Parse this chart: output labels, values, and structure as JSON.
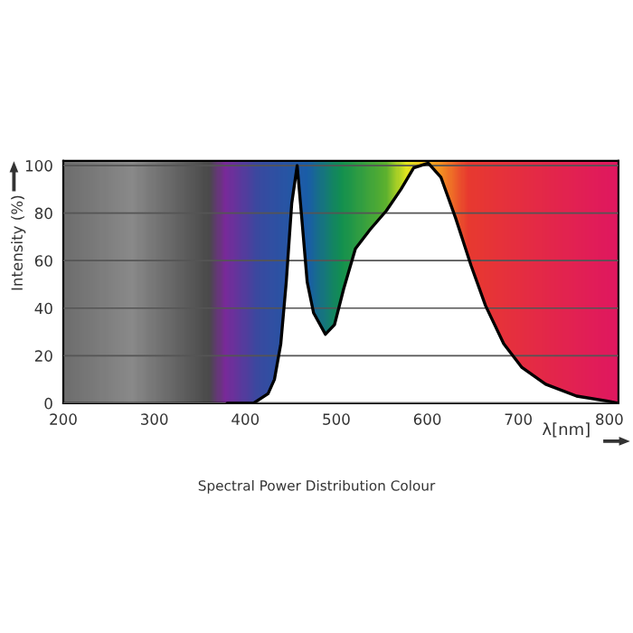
{
  "chart_data": {
    "type": "area",
    "xlabel": "λ[nm]",
    "ylabel": "Intensity (%)",
    "annotations": [
      "Spectral Power Distribution Colour"
    ],
    "xlim": [
      200,
      810
    ],
    "xticks": [
      200,
      300,
      400,
      500,
      600,
      700,
      800
    ],
    "ylim": [
      0,
      102
    ],
    "yticks": [
      0,
      20,
      40,
      60,
      80,
      100
    ],
    "grid": "y",
    "legend": false,
    "series": [
      {
        "color": "#ffffff",
        "x": [
          380,
          409,
          425,
          432,
          439,
          445,
          451,
          457,
          462,
          468,
          475,
          488,
          498,
          508,
          521,
          537,
          555,
          571,
          585,
          601,
          615,
          631,
          648,
          664,
          684,
          704,
          730,
          764,
          797,
          810
        ],
        "values": [
          0,
          0,
          4,
          10,
          25,
          51,
          84,
          100,
          78,
          51,
          38,
          29,
          33,
          48,
          65,
          73,
          81,
          90,
          99,
          101,
          95,
          78,
          58,
          41,
          25,
          15,
          8,
          3,
          1,
          0
        ]
      }
    ]
  }
}
